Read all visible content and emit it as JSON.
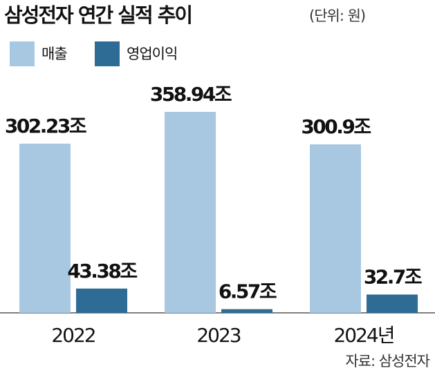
{
  "chart_data": {
    "type": "bar",
    "title": "삼성전자 연간 실적 추이",
    "subtitle": "(단위: 원)",
    "categories": [
      "2022",
      "2023",
      "2024년"
    ],
    "series": [
      {
        "name": "매출",
        "color": "#a8c8e2",
        "values": [
          302.23,
          358.94,
          300.9
        ],
        "value_labels": [
          "302.23조",
          "358.94조",
          "300.9조"
        ]
      },
      {
        "name": "영업이익",
        "color": "#2e6b95",
        "values": [
          43.38,
          6.57,
          32.7
        ],
        "value_labels": [
          "43.38조",
          "6.57조",
          "32.7조"
        ]
      }
    ],
    "source": "자료: 삼성전자"
  }
}
